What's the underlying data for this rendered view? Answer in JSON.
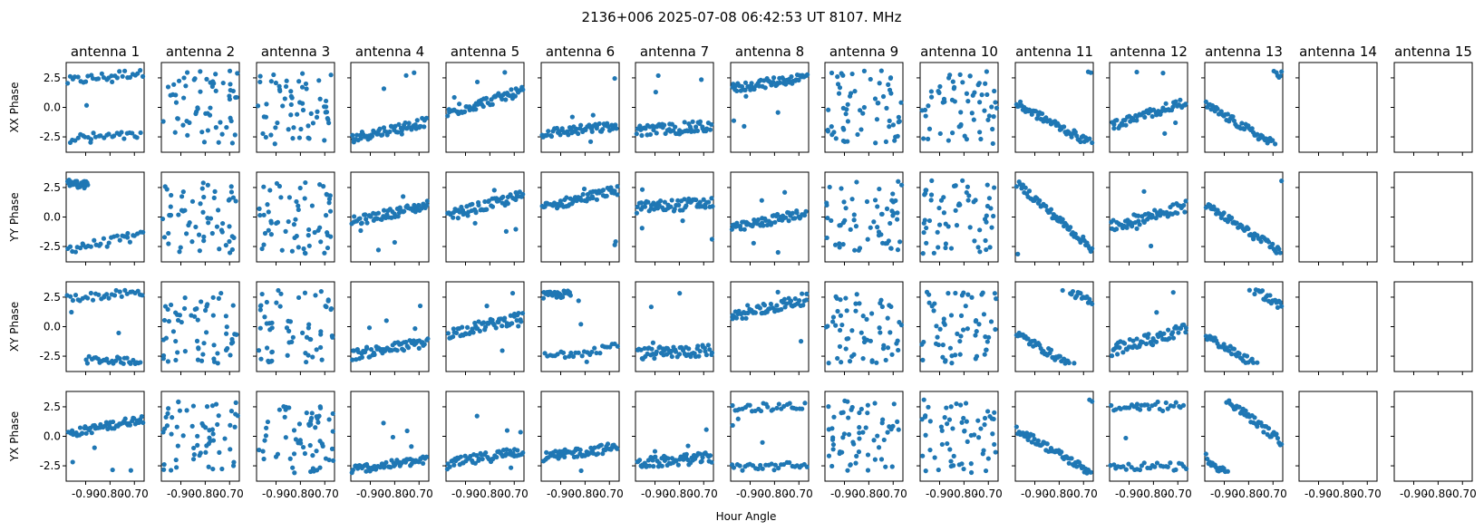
{
  "figure": {
    "suptitle": "2136+006  2025-07-08 06:42:53 UT  8107. MHz",
    "xlabel": "Hour Angle"
  },
  "chart_data": {
    "type": "scatter",
    "layout": "grid of scatter subplots, 4 rows x 15 columns, shared axes",
    "columns": [
      "antenna 1",
      "antenna 2",
      "antenna 3",
      "antenna 4",
      "antenna 5",
      "antenna 6",
      "antenna 7",
      "antenna 8",
      "antenna 9",
      "antenna 10",
      "antenna 11",
      "antenna 12",
      "antenna 13",
      "antenna 14",
      "antenna 15"
    ],
    "rows": [
      "XX Phase",
      "YY Phase",
      "XY Phase",
      "YX Phase"
    ],
    "xlim": [
      -0.98,
      -0.66
    ],
    "ylim": [
      -3.8,
      3.8
    ],
    "xticks": [
      -0.9,
      -0.8,
      -0.7
    ],
    "xtick_labels": [
      "-0.90",
      "-0.80",
      "-0.70"
    ],
    "yticks": [
      2.5,
      0.0,
      -2.5
    ],
    "ytick_labels": [
      "2.5",
      "0.0",
      "-2.5"
    ],
    "marker_color": "#1f77b4",
    "samples_per_panel": 60,
    "sample_x_range": [
      -0.975,
      -0.665
    ],
    "empty_columns": [
      "antenna 14",
      "antenna 15"
    ],
    "panels": [
      {
        "antenna": "antenna 1",
        "row": "XX Phase",
        "pattern": "split",
        "segments": [
          {
            "x_from": -0.975,
            "x_to": -0.665,
            "y_from": 2.2,
            "y_to": 3.0,
            "spread": 0.4
          },
          {
            "x_from": -0.975,
            "x_to": -0.665,
            "y_from": -2.6,
            "y_to": -2.4,
            "spread": 0.4
          }
        ]
      },
      {
        "antenna": "antenna 2",
        "row": "XX Phase",
        "pattern": "random"
      },
      {
        "antenna": "antenna 3",
        "row": "XX Phase",
        "pattern": "random"
      },
      {
        "antenna": "antenna 4",
        "row": "XX Phase",
        "pattern": "trend",
        "y_start": -2.6,
        "y_end": -1.2,
        "spread": 0.4
      },
      {
        "antenna": "antenna 5",
        "row": "XX Phase",
        "pattern": "trend",
        "y_start": -0.5,
        "y_end": 1.4,
        "spread": 0.4
      },
      {
        "antenna": "antenna 6",
        "row": "XX Phase",
        "pattern": "trend",
        "y_start": -2.2,
        "y_end": -1.6,
        "spread": 0.4
      },
      {
        "antenna": "antenna 7",
        "row": "XX Phase",
        "pattern": "trend",
        "y_start": -2.0,
        "y_end": -1.6,
        "spread": 0.5
      },
      {
        "antenna": "antenna 8",
        "row": "XX Phase",
        "pattern": "trend",
        "y_start": 1.6,
        "y_end": 2.6,
        "spread": 0.4
      },
      {
        "antenna": "antenna 9",
        "row": "XX Phase",
        "pattern": "random"
      },
      {
        "antenna": "antenna 10",
        "row": "XX Phase",
        "pattern": "random"
      },
      {
        "antenna": "antenna 11",
        "row": "XX Phase",
        "pattern": "wrap",
        "y_start": 0.3,
        "slope": -11.0,
        "spread": 0.35
      },
      {
        "antenna": "antenna 12",
        "row": "XX Phase",
        "pattern": "trend",
        "y_start": -1.6,
        "y_end": 0.5,
        "spread": 0.4
      },
      {
        "antenna": "antenna 13",
        "row": "XX Phase",
        "pattern": "wrap",
        "y_start": 0.2,
        "slope": -12.0,
        "spread": 0.35
      },
      {
        "antenna": "antenna 1",
        "row": "YY Phase",
        "pattern": "split",
        "segments": [
          {
            "x_from": -0.975,
            "x_to": -0.89,
            "y_from": 2.9,
            "y_to": 2.7,
            "spread": 0.3
          },
          {
            "x_from": -0.975,
            "x_to": -0.665,
            "y_from": -2.7,
            "y_to": -1.6,
            "spread": 0.4
          }
        ]
      },
      {
        "antenna": "antenna 2",
        "row": "YY Phase",
        "pattern": "random"
      },
      {
        "antenna": "antenna 3",
        "row": "YY Phase",
        "pattern": "random"
      },
      {
        "antenna": "antenna 4",
        "row": "YY Phase",
        "pattern": "trend",
        "y_start": -0.4,
        "y_end": 1.0,
        "spread": 0.4
      },
      {
        "antenna": "antenna 5",
        "row": "YY Phase",
        "pattern": "trend",
        "y_start": 0.1,
        "y_end": 1.8,
        "spread": 0.45
      },
      {
        "antenna": "antenna 6",
        "row": "YY Phase",
        "pattern": "trend",
        "y_start": 0.8,
        "y_end": 2.3,
        "spread": 0.4
      },
      {
        "antenna": "antenna 7",
        "row": "YY Phase",
        "pattern": "trend",
        "y_start": 0.8,
        "y_end": 1.2,
        "spread": 0.5
      },
      {
        "antenna": "antenna 8",
        "row": "YY Phase",
        "pattern": "trend",
        "y_start": -1.0,
        "y_end": 0.4,
        "spread": 0.4
      },
      {
        "antenna": "antenna 9",
        "row": "YY Phase",
        "pattern": "random"
      },
      {
        "antenna": "antenna 10",
        "row": "YY Phase",
        "pattern": "random"
      },
      {
        "antenna": "antenna 11",
        "row": "YY Phase",
        "pattern": "wrap",
        "y_start": 2.9,
        "slope": -18.0,
        "spread": 0.35
      },
      {
        "antenna": "antenna 12",
        "row": "YY Phase",
        "pattern": "trend",
        "y_start": -0.8,
        "y_end": 0.9,
        "spread": 0.5
      },
      {
        "antenna": "antenna 13",
        "row": "YY Phase",
        "pattern": "wrap",
        "y_start": 1.0,
        "slope": -13.0,
        "spread": 0.35
      },
      {
        "antenna": "antenna 1",
        "row": "XY Phase",
        "pattern": "split",
        "segments": [
          {
            "x_from": -0.975,
            "x_to": -0.665,
            "y_from": 2.4,
            "y_to": 2.9,
            "spread": 0.35
          },
          {
            "x_from": -0.9,
            "x_to": -0.665,
            "y_from": -2.8,
            "y_to": -2.9,
            "spread": 0.3
          }
        ]
      },
      {
        "antenna": "antenna 2",
        "row": "XY Phase",
        "pattern": "random"
      },
      {
        "antenna": "antenna 3",
        "row": "XY Phase",
        "pattern": "random"
      },
      {
        "antenna": "antenna 4",
        "row": "XY Phase",
        "pattern": "trend",
        "y_start": -2.4,
        "y_end": -1.3,
        "spread": 0.45
      },
      {
        "antenna": "antenna 5",
        "row": "XY Phase",
        "pattern": "trend",
        "y_start": -0.6,
        "y_end": 0.8,
        "spread": 0.45
      },
      {
        "antenna": "antenna 6",
        "row": "XY Phase",
        "pattern": "split",
        "segments": [
          {
            "x_from": -0.975,
            "x_to": -0.86,
            "y_from": 2.6,
            "y_to": 2.8,
            "spread": 0.3
          },
          {
            "x_from": -0.975,
            "x_to": -0.665,
            "y_from": -2.6,
            "y_to": -1.6,
            "spread": 0.4
          }
        ]
      },
      {
        "antenna": "antenna 7",
        "row": "XY Phase",
        "pattern": "trend",
        "y_start": -2.3,
        "y_end": -2.0,
        "spread": 0.5
      },
      {
        "antenna": "antenna 8",
        "row": "XY Phase",
        "pattern": "trend",
        "y_start": 0.8,
        "y_end": 2.4,
        "spread": 0.5
      },
      {
        "antenna": "antenna 9",
        "row": "XY Phase",
        "pattern": "random"
      },
      {
        "antenna": "antenna 10",
        "row": "XY Phase",
        "pattern": "random"
      },
      {
        "antenna": "antenna 11",
        "row": "XY Phase",
        "pattern": "wrap",
        "y_start": -0.6,
        "slope": -12.0,
        "spread": 0.35
      },
      {
        "antenna": "antenna 12",
        "row": "XY Phase",
        "pattern": "trend",
        "y_start": -2.0,
        "y_end": -0.2,
        "spread": 0.5
      },
      {
        "antenna": "antenna 13",
        "row": "XY Phase",
        "pattern": "wrap",
        "y_start": -0.8,
        "slope": -12.0,
        "spread": 0.35
      },
      {
        "antenna": "antenna 1",
        "row": "YX Phase",
        "pattern": "trend",
        "y_start": 0.2,
        "y_end": 1.5,
        "spread": 0.35
      },
      {
        "antenna": "antenna 2",
        "row": "YX Phase",
        "pattern": "random"
      },
      {
        "antenna": "antenna 3",
        "row": "YX Phase",
        "pattern": "random"
      },
      {
        "antenna": "antenna 4",
        "row": "YX Phase",
        "pattern": "trend",
        "y_start": -2.8,
        "y_end": -2.0,
        "spread": 0.35
      },
      {
        "antenna": "antenna 5",
        "row": "YX Phase",
        "pattern": "trend",
        "y_start": -2.4,
        "y_end": -1.2,
        "spread": 0.45
      },
      {
        "antenna": "antenna 6",
        "row": "YX Phase",
        "pattern": "trend",
        "y_start": -1.8,
        "y_end": -0.9,
        "spread": 0.4
      },
      {
        "antenna": "antenna 7",
        "row": "YX Phase",
        "pattern": "trend",
        "y_start": -2.3,
        "y_end": -1.8,
        "spread": 0.45
      },
      {
        "antenna": "antenna 8",
        "row": "YX Phase",
        "pattern": "split",
        "segments": [
          {
            "x_from": -0.975,
            "x_to": -0.665,
            "y_from": 2.4,
            "y_to": 2.6,
            "spread": 0.35
          },
          {
            "x_from": -0.975,
            "x_to": -0.665,
            "y_from": -2.6,
            "y_to": -2.5,
            "spread": 0.35
          }
        ]
      },
      {
        "antenna": "antenna 9",
        "row": "YX Phase",
        "pattern": "random"
      },
      {
        "antenna": "antenna 10",
        "row": "YX Phase",
        "pattern": "random"
      },
      {
        "antenna": "antenna 11",
        "row": "YX Phase",
        "pattern": "wrap",
        "y_start": 0.6,
        "slope": -12.0,
        "spread": 0.35
      },
      {
        "antenna": "antenna 12",
        "row": "YX Phase",
        "pattern": "split",
        "segments": [
          {
            "x_from": -0.975,
            "x_to": -0.665,
            "y_from": 2.4,
            "y_to": 2.6,
            "spread": 0.4
          },
          {
            "x_from": -0.975,
            "x_to": -0.665,
            "y_from": -2.5,
            "y_to": -2.6,
            "spread": 0.35
          }
        ]
      },
      {
        "antenna": "antenna 13",
        "row": "YX Phase",
        "pattern": "wrap",
        "y_start": -1.8,
        "slope": -16.0,
        "spread": 0.35
      }
    ]
  }
}
